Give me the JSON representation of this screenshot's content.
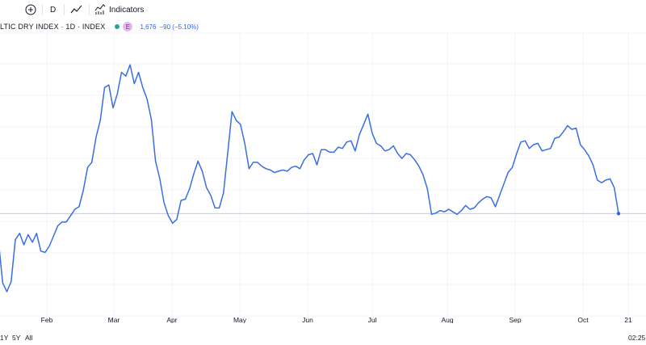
{
  "toolbar": {
    "add_icon": "plus-circle-icon",
    "interval_label": "D",
    "chart_type_icon": "line-chart-icon",
    "indicators_icon": "indicators-icon",
    "indicators_label": "Indicators"
  },
  "legend": {
    "symbol": "LTIC DRY INDEX · 1D · INDEX",
    "badge": "E",
    "last": "1,676",
    "change": "−90 (−5.10%)"
  },
  "range_buttons": [
    "1Y",
    "5Y",
    "All"
  ],
  "clock": "02:25:",
  "colors": {
    "line": "#2962ff",
    "line_stroke": "#3a6ee0",
    "status_dot": "#26a69a",
    "legend_value": "#2962ff",
    "price_line": "#c8ccd4"
  },
  "chart_data": {
    "type": "line",
    "x_tick_labels": [
      "Feb",
      "Mar",
      "Apr",
      "May",
      "Jun",
      "Jul",
      "Aug",
      "Sep",
      "Oct",
      "21"
    ],
    "ylim": [
      850,
      3150
    ],
    "last_value": 1676,
    "series": [
      {
        "values": [
          1470,
          1130,
          1060,
          1140,
          1470,
          1520,
          1430,
          1510,
          1450,
          1520,
          1380,
          1370,
          1420,
          1500,
          1580,
          1610,
          1610,
          1660,
          1710,
          1730,
          1860,
          2040,
          2080,
          2280,
          2410,
          2670,
          2690,
          2510,
          2620,
          2790,
          2760,
          2850,
          2700,
          2790,
          2670,
          2580,
          2420,
          2090,
          1950,
          1760,
          1660,
          1600,
          1630,
          1780,
          1790,
          1870,
          1990,
          2090,
          2010,
          1880,
          1820,
          1720,
          1720,
          1840,
          2160,
          2480,
          2410,
          2380,
          2230,
          2030,
          2080,
          2080,
          2050,
          2030,
          2020,
          2000,
          2010,
          2020,
          2010,
          2040,
          2050,
          2030,
          2100,
          2140,
          2150,
          2060,
          2180,
          2180,
          2160,
          2160,
          2200,
          2190,
          2240,
          2250,
          2170,
          2300,
          2380,
          2460,
          2310,
          2230,
          2210,
          2170,
          2180,
          2210,
          2150,
          2110,
          2150,
          2140,
          2100,
          2050,
          1980,
          1870,
          1670,
          1680,
          1700,
          1690,
          1710,
          1690,
          1670,
          1700,
          1740,
          1710,
          1720,
          1760,
          1790,
          1810,
          1800,
          1730,
          1820,
          1910,
          2000,
          2040,
          2150,
          2240,
          2250,
          2190,
          2220,
          2230,
          2170,
          2180,
          2190,
          2270,
          2280,
          2320,
          2370,
          2340,
          2350,
          2220,
          2180,
          2130,
          2060,
          1940,
          1920,
          1940,
          1950,
          1880,
          1676
        ]
      }
    ]
  }
}
